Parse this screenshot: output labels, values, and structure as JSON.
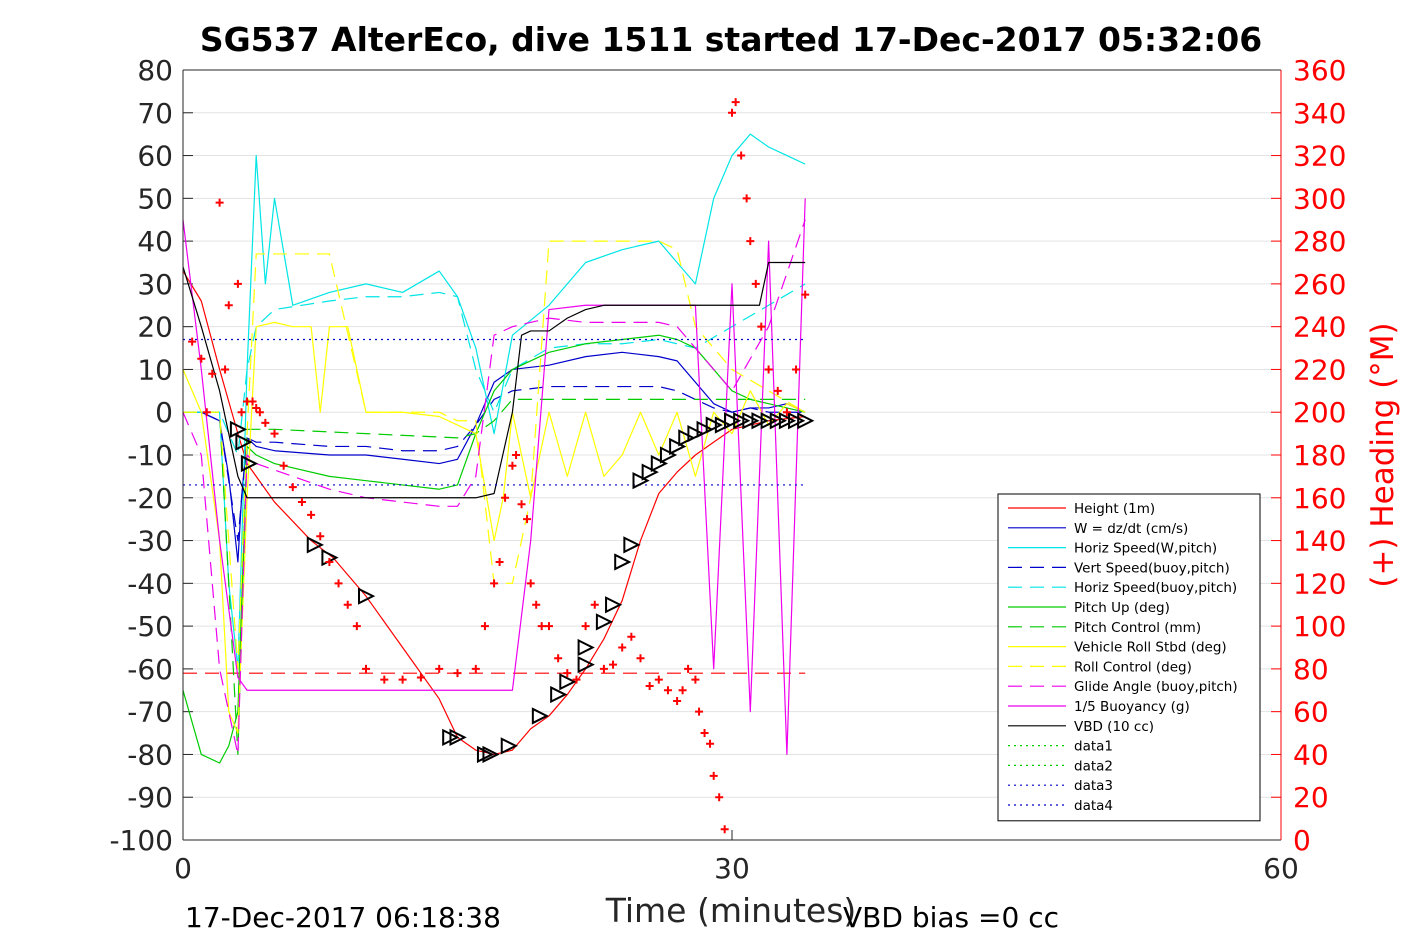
{
  "chart_data": {
    "type": "line",
    "title": "SG537 AlterEco, dive 1511 started 17-Dec-2017 05:32:06",
    "xlabel": "Time (minutes)",
    "ylabel_left": "",
    "ylabel_right": "(+) Heading (°M)",
    "xlim": [
      0,
      60
    ],
    "ylim": [
      -100,
      80
    ],
    "ylim_right": [
      0,
      360
    ],
    "xticks": [
      "0",
      "30",
      "60"
    ],
    "yticks": [
      "80",
      "70",
      "60",
      "50",
      "40",
      "30",
      "20",
      "10",
      "0",
      "-10",
      "-20",
      "-30",
      "-40",
      "-50",
      "-60",
      "-70",
      "-80",
      "-90",
      "-100"
    ],
    "yticks_right": [
      "360",
      "340",
      "320",
      "300",
      "280",
      "260",
      "240",
      "220",
      "200",
      "180",
      "160",
      "140",
      "120",
      "100",
      "80",
      "60",
      "40",
      "20",
      "0"
    ],
    "footer_left": "17-Dec-2017 06:18:38",
    "footer_right": "VBD bias =0 cc",
    "grid": "horizontal",
    "legend_position": "lower-right",
    "colors": {
      "heading": "#ff0000",
      "axis_right": "#ff0000"
    },
    "series": [
      {
        "name": "Height (1m)",
        "color": "#ff0000",
        "style": "solid",
        "x": [
          0,
          1,
          2,
          3,
          3.5,
          5,
          7,
          8.2,
          10,
          12,
          14,
          15,
          16,
          17,
          18,
          19,
          20,
          21,
          22,
          23,
          24,
          25,
          26,
          27,
          28,
          29,
          30,
          31,
          32,
          33,
          34
        ],
        "y": [
          33,
          26,
          10,
          -5,
          -12,
          -21,
          -30,
          -34,
          -43,
          -55,
          -67,
          -76,
          -79,
          -80,
          -79,
          -74,
          -71,
          -66,
          -60,
          -53,
          -44,
          -30,
          -19,
          -14,
          -10,
          -7,
          -4,
          -3,
          -2,
          -1.5,
          -1
        ]
      },
      {
        "name": "W = dz/dt (cm/s)",
        "color": "#0000cc",
        "style": "solid",
        "x": [
          0,
          1,
          2,
          2.5,
          3,
          3.2,
          3.5,
          4,
          5,
          8,
          10,
          12,
          14,
          15,
          16,
          17,
          18,
          20,
          22,
          24,
          26,
          27,
          28,
          29,
          30,
          31,
          32,
          33,
          34
        ],
        "y": [
          0,
          0,
          -2,
          -15,
          -35,
          -20,
          -6,
          -8,
          -9,
          -10,
          -10,
          -11,
          -12,
          -11,
          -3,
          7,
          10,
          11,
          13,
          14,
          13,
          12,
          7,
          2,
          0,
          1,
          1,
          2,
          0
        ]
      },
      {
        "name": "Horiz Speed(W,pitch)",
        "color": "#00e5e5",
        "style": "solid",
        "x": [
          0,
          1,
          2,
          2.5,
          3,
          3.5,
          4,
          4.5,
          5,
          6,
          8,
          10,
          12,
          14,
          15,
          16,
          17,
          18,
          20,
          22,
          24,
          26,
          27,
          28,
          29,
          30,
          31,
          32,
          33,
          34
        ],
        "y": [
          0,
          0,
          0,
          -40,
          -60,
          10,
          60,
          30,
          50,
          25,
          28,
          30,
          28,
          33,
          27,
          15,
          -5,
          18,
          25,
          35,
          38,
          40,
          35,
          30,
          50,
          60,
          65,
          62,
          60,
          58
        ]
      },
      {
        "name": "Vert Speed(buoy,pitch)",
        "color": "#0000cc",
        "style": "dashed",
        "x": [
          0,
          1,
          2,
          3,
          3.5,
          4,
          5,
          8,
          10,
          12,
          14,
          15,
          16,
          17,
          18,
          20,
          22,
          24,
          26,
          27,
          28,
          29,
          30,
          31,
          32,
          33,
          34
        ],
        "y": [
          0,
          0,
          -2,
          -30,
          -6,
          -7,
          -7,
          -8,
          -8,
          -9,
          -9,
          -8,
          -3,
          3,
          5,
          6,
          6,
          6,
          6,
          5,
          3,
          1,
          0,
          1,
          0,
          0,
          0
        ]
      },
      {
        "name": "Horiz Speed(buoy,pitch)",
        "color": "#00e5e5",
        "style": "dashed",
        "x": [
          0,
          2,
          3,
          3.5,
          4,
          5,
          8,
          10,
          12,
          14,
          15,
          16,
          17,
          18,
          20,
          22,
          24,
          26,
          27,
          28,
          30,
          32,
          34
        ],
        "y": [
          0,
          0,
          -10,
          10,
          20,
          24,
          26,
          27,
          27,
          28,
          27,
          10,
          0,
          10,
          15,
          16,
          16,
          17,
          16,
          15,
          20,
          25,
          30
        ]
      },
      {
        "name": "Pitch Up (deg)",
        "color": "#00cc00",
        "style": "solid",
        "x": [
          0,
          1,
          2,
          2.5,
          3,
          3.5,
          4,
          5,
          8,
          10,
          12,
          14,
          15,
          16,
          17,
          18,
          20,
          22,
          24,
          26,
          27,
          28,
          29,
          30,
          31,
          32,
          33,
          34
        ],
        "y": [
          -65,
          -80,
          -82,
          -78,
          -70,
          -8,
          -10,
          -12,
          -15,
          -16,
          -17,
          -18,
          -17,
          -5,
          5,
          10,
          14,
          16,
          17,
          18,
          17,
          15,
          10,
          5,
          3,
          2,
          1,
          0
        ]
      },
      {
        "name": "Pitch Control (mm)",
        "color": "#00cc00",
        "style": "dashed",
        "x": [
          0,
          2,
          3,
          3.5,
          5,
          10,
          15,
          16,
          17,
          18,
          20,
          25,
          28,
          30,
          34
        ],
        "y": [
          0,
          0,
          -80,
          -4,
          -4,
          -5,
          -6,
          -5,
          -2,
          3,
          3,
          3,
          3,
          3,
          3
        ]
      },
      {
        "name": "Vehicle Roll Stbd (deg)",
        "color": "#ffff00",
        "style": "solid",
        "x": [
          0,
          1,
          2,
          2.5,
          3,
          3.5,
          4,
          5,
          6,
          7,
          7.5,
          8,
          9,
          10,
          12,
          14,
          15,
          16,
          17,
          17.5,
          18,
          19,
          20,
          21,
          22,
          23,
          24,
          25,
          26,
          27,
          28,
          29,
          30,
          31,
          32,
          33,
          34
        ],
        "y": [
          10,
          0,
          -30,
          -70,
          -75,
          -20,
          20,
          21,
          20,
          20,
          0,
          20,
          20,
          0,
          0,
          -1,
          -3,
          -5,
          -30,
          -20,
          0,
          -20,
          0,
          -15,
          0,
          -15,
          -10,
          0,
          -10,
          0,
          -15,
          0,
          -5,
          5,
          -3,
          2,
          0
        ]
      },
      {
        "name": "Roll Control (deg)",
        "color": "#ffff00",
        "style": "dashed",
        "x": [
          0,
          2,
          3,
          3.5,
          4,
          6,
          8,
          10,
          12,
          14,
          15,
          16,
          17,
          18,
          19,
          20,
          22,
          24,
          26,
          27,
          28,
          30,
          32,
          34
        ],
        "y": [
          0,
          0,
          -60,
          -5,
          37,
          37,
          37,
          0,
          0,
          0,
          -2,
          -2,
          -40,
          -40,
          -20,
          40,
          40,
          40,
          40,
          38,
          20,
          10,
          5,
          0
        ]
      },
      {
        "name": "Glide Angle (buoy,pitch)",
        "color": "#ee00ee",
        "style": "dashed",
        "x": [
          0,
          1,
          2,
          3,
          3.5,
          4,
          6,
          8,
          10,
          12,
          14,
          15,
          16,
          17,
          18,
          20,
          22,
          24,
          26,
          27,
          28,
          30,
          32,
          34
        ],
        "y": [
          0,
          -10,
          -60,
          -80,
          -10,
          -12,
          -15,
          -18,
          -20,
          -21,
          -22,
          -22,
          -15,
          18,
          20,
          22,
          21,
          21,
          21,
          20,
          15,
          5,
          20,
          45
        ]
      },
      {
        "name": "1/5 Buoyancy (g)",
        "color": "#ee00ee",
        "style": "solid",
        "x": [
          0,
          1,
          2,
          3,
          3.5,
          5,
          8,
          10,
          12,
          14,
          15,
          16,
          17,
          18,
          19,
          20,
          22,
          24,
          26,
          27,
          28,
          29,
          30,
          31,
          32,
          33,
          34
        ],
        "y": [
          45,
          10,
          -30,
          -62,
          -65,
          -65,
          -65,
          -65,
          -65,
          -65,
          -65,
          -65,
          -65,
          -65,
          -30,
          24,
          25,
          25,
          25,
          25,
          25,
          -60,
          30,
          -70,
          40,
          -80,
          50
        ]
      },
      {
        "name": "VBD (10 cc)",
        "color": "#000000",
        "style": "solid",
        "x": [
          0,
          1,
          2,
          3,
          3.5,
          5,
          10,
          14,
          15,
          16,
          17,
          18,
          18.5,
          19,
          20,
          21,
          22,
          23,
          24,
          25,
          26,
          27,
          28,
          29,
          30,
          31,
          31.5,
          32,
          33,
          34
        ],
        "y": [
          34,
          20,
          5,
          -15,
          -20,
          -20,
          -20,
          -20,
          -20,
          -20,
          -19,
          0,
          18,
          19,
          19,
          22,
          24,
          25,
          25,
          25,
          25,
          25,
          25,
          25,
          25,
          25,
          25,
          35,
          35,
          35
        ]
      },
      {
        "name": "data1",
        "color": "#00cc00",
        "style": "dotted",
        "x": [],
        "y": []
      },
      {
        "name": "data2",
        "color": "#00cc00",
        "style": "dotted",
        "x": [],
        "y": []
      },
      {
        "name": "data3",
        "color": "#0000cc",
        "style": "dotted",
        "x": [
          0,
          34
        ],
        "y": [
          17,
          17
        ]
      },
      {
        "name": "data4",
        "color": "#0000cc",
        "style": "dotted",
        "x": [
          0,
          34
        ],
        "y": [
          -17,
          -17
        ]
      }
    ],
    "reference_lines": [
      {
        "color": "#ff0000",
        "style": "dashed",
        "x": [
          0,
          34
        ],
        "y": [
          -61,
          -61
        ]
      }
    ],
    "heading": {
      "color": "#ff0000",
      "x": [
        0.5,
        1,
        1.3,
        1.6,
        2,
        2.3,
        2.5,
        3,
        3.2,
        3.5,
        3.8,
        4,
        4.2,
        4.5,
        5,
        5.5,
        6,
        6.5,
        7,
        7.5,
        8,
        8.5,
        9,
        9.5,
        10,
        11,
        12,
        13,
        14,
        15,
        16,
        16.5,
        17,
        17.3,
        17.6,
        18,
        18.2,
        18.5,
        18.8,
        19,
        19.3,
        19.6,
        20,
        20.5,
        21,
        21.5,
        22,
        22.5,
        23,
        23.5,
        24,
        24.5,
        25,
        25.5,
        26,
        26.5,
        27,
        27.3,
        27.6,
        28,
        28.2,
        28.5,
        28.8,
        29,
        29.3,
        29.6,
        30,
        30.2,
        30.5,
        30.8,
        31,
        31.3,
        31.6,
        32,
        32.5,
        33,
        33.5,
        34
      ],
      "y": [
        233,
        225,
        200,
        218,
        298,
        220,
        250,
        260,
        200,
        205,
        205,
        202,
        200,
        195,
        190,
        175,
        165,
        158,
        152,
        142,
        130,
        120,
        110,
        100,
        80,
        75,
        75,
        76,
        80,
        78,
        80,
        100,
        120,
        130,
        160,
        175,
        180,
        157,
        150,
        120,
        110,
        100,
        100,
        85,
        78,
        75,
        100,
        110,
        80,
        82,
        90,
        95,
        85,
        72,
        75,
        70,
        65,
        70,
        80,
        75,
        60,
        50,
        45,
        30,
        20,
        5,
        340,
        345,
        320,
        300,
        280,
        260,
        240,
        220,
        210,
        200,
        220,
        255
      ]
    },
    "legend": [
      "Height (1m)",
      "W = dz/dt (cm/s)",
      "Horiz Speed(W,pitch)",
      "Vert Speed(buoy,pitch)",
      "Horiz Speed(buoy,pitch)",
      "Pitch Up (deg)",
      "Pitch Control (mm)",
      "Vehicle Roll Stbd (deg)",
      "Roll Control (deg)",
      "Glide Angle (buoy,pitch)",
      "1/5 Buoyancy (g)",
      "VBD (10 cc)",
      "data1",
      "data2",
      "data3",
      "data4"
    ],
    "markers_triangles": {
      "x": [
        3,
        3.3,
        3.6,
        7.2,
        8,
        10,
        14.6,
        15,
        16.5,
        16.8,
        17.8,
        19.5,
        20.5,
        21,
        22,
        22,
        23,
        23.5,
        24,
        24.5,
        25,
        25.5,
        26,
        26.5,
        27,
        27.5,
        28,
        28.5,
        29,
        29.5,
        30,
        30.5,
        31,
        31.5,
        32,
        32.5,
        33,
        33.5,
        34
      ],
      "y": [
        -4,
        -7,
        -12,
        -31,
        -34,
        -43,
        -76,
        -76,
        -80,
        -80,
        -78,
        -71,
        -66,
        -63,
        -55,
        -59,
        -49,
        -45,
        -35,
        -31,
        -16,
        -14,
        -12,
        -10,
        -8,
        -6,
        -5,
        -4,
        -3,
        -3,
        -2,
        -2,
        -2,
        -2,
        -2,
        -2,
        -2,
        -2,
        -2
      ]
    }
  }
}
